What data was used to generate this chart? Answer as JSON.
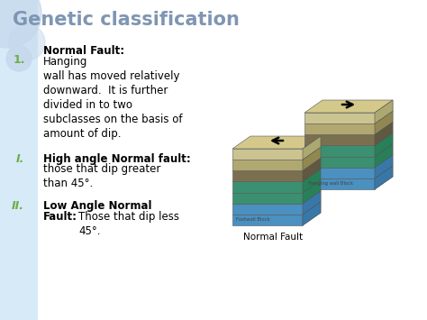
{
  "title": "Genetic classification",
  "title_color": "#7f96b2",
  "title_fontsize": 15,
  "title_weight": "bold",
  "bg_color": "#ffffff",
  "left_panel_color": "#d6eaf8",
  "item1_bold": "Normal Fault:",
  "item1_text": " Hanging\nwall has moved relatively\ndownward.  It is further\ndivided in to two\nsubclasses on the basis of\namount of dip.",
  "item2_bold": "High angle Normal fault:",
  "item2_text": "\nthose that dip greater\nthan 45°.",
  "item3_bold": "Low Angle Normal\nFault:",
  "item3_text": " Those that dip less\n45°.",
  "label_color": "#70ad47",
  "text_color": "#000000",
  "bold_color": "#000000",
  "image_label": "Normal Fault",
  "image_label_color": "#000000",
  "circle_color": "#c5d8ec",
  "number_color": "#70ad47",
  "layer_colors": [
    "#d4c98a",
    "#c4b87a",
    "#b09060",
    "#8a7050",
    "#7a9060",
    "#50907a",
    "#3070a0"
  ],
  "layer_colors_side": [
    "#b8ad70",
    "#a89860",
    "#907850",
    "#705840",
    "#608050",
    "#40806a",
    "#206090"
  ]
}
